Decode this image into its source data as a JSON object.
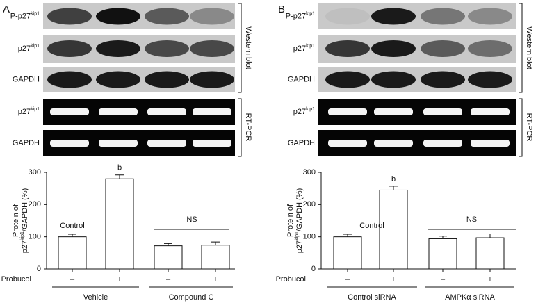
{
  "panels": [
    {
      "letter": "A",
      "blot_labels": [
        {
          "text": "P-p27",
          "sup": "kip1"
        },
        {
          "text": "p27",
          "sup": "kip1"
        },
        {
          "text": "GAPDH"
        },
        {
          "text": "p27",
          "sup": "kip1"
        },
        {
          "text": "GAPDH"
        }
      ],
      "western": "Western blot",
      "rtpcr": "RT-PCR"
    },
    {
      "letter": "B",
      "blot_labels": [
        {
          "text": "P-p27",
          "sup": "kip1"
        },
        {
          "text": "p27",
          "sup": "kip1"
        },
        {
          "text": "GAPDH"
        },
        {
          "text": "p27",
          "sup": "kip1"
        },
        {
          "text": "GAPDH"
        }
      ],
      "western": "Western blot",
      "rtpcr": "RT-PCR"
    }
  ],
  "chart_data": [
    {
      "type": "bar",
      "ylabel": [
        "Protein of",
        {
          "text": "p27",
          "sup": "kip1",
          "rest": "/GAPDH (%)"
        }
      ],
      "categories": [
        "–",
        "+",
        "–",
        "+"
      ],
      "row_label": "Probucol",
      "groups": [
        "Vehicle",
        "Compound C"
      ],
      "values": [
        100,
        280,
        72,
        74
      ],
      "errors": [
        8,
        12,
        7,
        10
      ],
      "ylim": [
        0,
        300
      ],
      "yticks": [
        0,
        100,
        200,
        300
      ],
      "control_label": "Control",
      "sig_label": "b",
      "ns_label": "NS",
      "color": "#ffffff"
    },
    {
      "type": "bar",
      "ylabel": [
        "Protein of",
        {
          "text": "p27",
          "sup": "kip1",
          "rest": "/GAPDH (%)"
        }
      ],
      "categories": [
        "–",
        "+",
        "–",
        "+"
      ],
      "row_label": "Probucol",
      "groups": [
        "Control siRNA",
        "AMPKα siRNA"
      ],
      "values": [
        100,
        245,
        94,
        97
      ],
      "errors": [
        8,
        12,
        8,
        12
      ],
      "ylim": [
        0,
        300
      ],
      "yticks": [
        0,
        100,
        200,
        300
      ],
      "control_label": "Control",
      "sig_label": "b",
      "ns_label": "NS",
      "color": "#ffffff"
    }
  ]
}
